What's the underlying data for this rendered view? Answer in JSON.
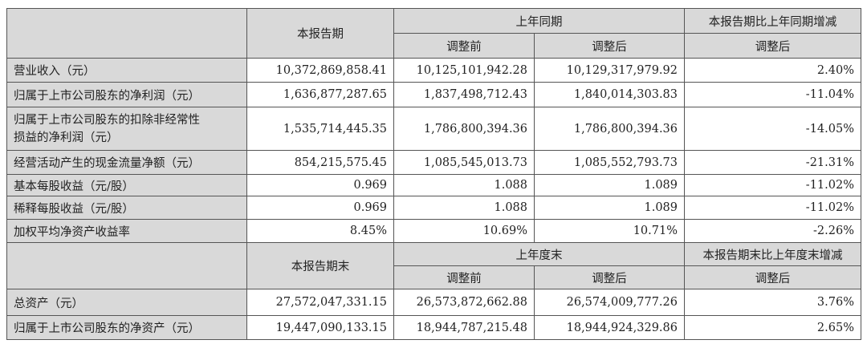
{
  "header1": {
    "current": "本报告期",
    "prior": "上年同期",
    "change": "本报告期比上年同期增减",
    "before": "调整前",
    "after": "调整后",
    "change_after": "调整后"
  },
  "rows1": [
    {
      "label": "营业收入（元）",
      "current": "10,372,869,858.41",
      "before": "10,125,101,942.28",
      "after": "10,129,317,979.92",
      "change": "2.40%"
    },
    {
      "label": "归属于上市公司股东的净利润（元）",
      "current": "1,636,877,287.65",
      "before": "1,837,498,712.43",
      "after": "1,840,014,303.83",
      "change": "-11.04%"
    },
    {
      "label": "归属于上市公司股东的扣除非经常性损益的净利润（元）",
      "label_line1": "归属于上市公司股东的扣除非经常性",
      "label_line2": "损益的净利润（元）",
      "current": "1,535,714,445.35",
      "before": "1,786,800,394.36",
      "after": "1,786,800,394.36",
      "change": "-14.05%"
    },
    {
      "label": "经营活动产生的现金流量净额（元）",
      "current": "854,215,575.45",
      "before": "1,085,545,013.73",
      "after": "1,085,552,793.73",
      "change": "-21.31%"
    },
    {
      "label": "基本每股收益（元/股）",
      "current": "0.969",
      "before": "1.088",
      "after": "1.089",
      "change": "-11.02%"
    },
    {
      "label": "稀释每股收益（元/股）",
      "current": "0.969",
      "before": "1.088",
      "after": "1.089",
      "change": "-11.02%"
    },
    {
      "label": "加权平均净资产收益率",
      "current": "8.45%",
      "before": "10.69%",
      "after": "10.71%",
      "change": "-2.26%"
    }
  ],
  "header2": {
    "current": "本报告期末",
    "prior": "上年度末",
    "change": "本报告期末比上年度末增减",
    "before": "调整前",
    "after": "调整后",
    "change_after": "调整后"
  },
  "rows2": [
    {
      "label": "总资产（元）",
      "current": "27,572,047,331.15",
      "before": "26,573,872,662.88",
      "after": "26,574,009,777.26",
      "change": "3.76%"
    },
    {
      "label": "归属于上市公司股东的净资产（元）",
      "current": "19,447,090,133.15",
      "before": "18,944,787,215.48",
      "after": "18,944,924,329.86",
      "change": "2.65%"
    }
  ]
}
